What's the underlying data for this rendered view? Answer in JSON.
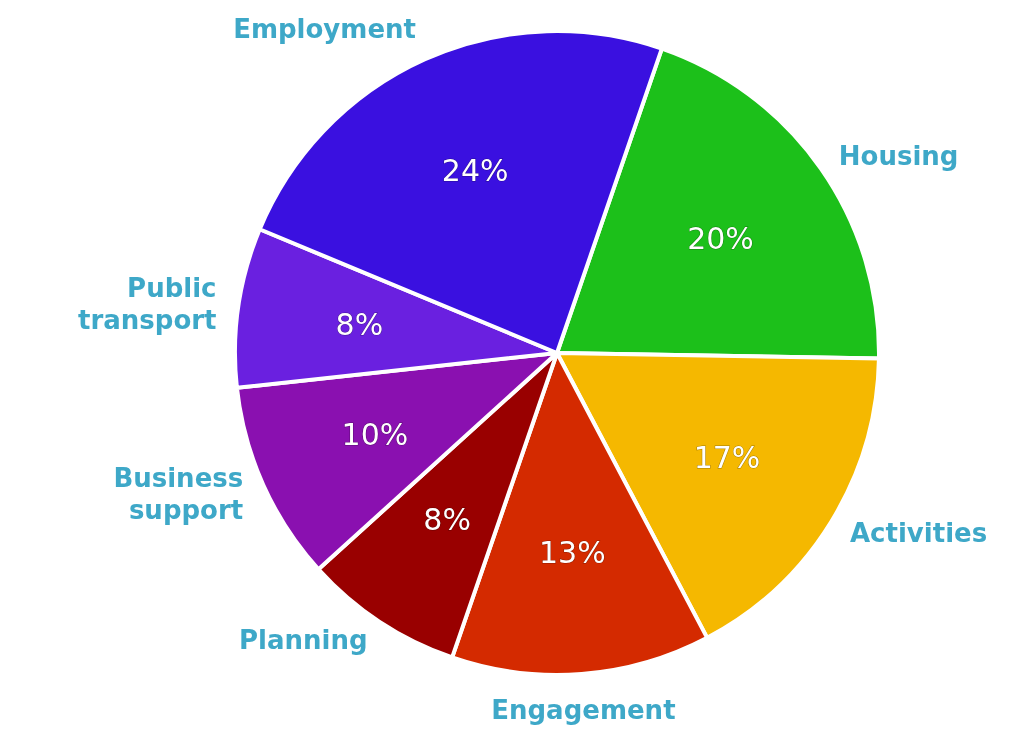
{
  "chart_data": {
    "type": "pie",
    "categories": [
      "Housing",
      "Activities",
      "Engagement",
      "Planning",
      "Business support",
      "Public transport",
      "Employment"
    ],
    "values": [
      20,
      17,
      13,
      8,
      10,
      8,
      24
    ],
    "colors": [
      "#1cc01a",
      "#f5b800",
      "#d42a00",
      "#990000",
      "#8a10b0",
      "#6a20e0",
      "#3a10e0"
    ],
    "value_labels": [
      "20%",
      "17%",
      "13%",
      "8%",
      "10%",
      "8%",
      "24%"
    ]
  }
}
